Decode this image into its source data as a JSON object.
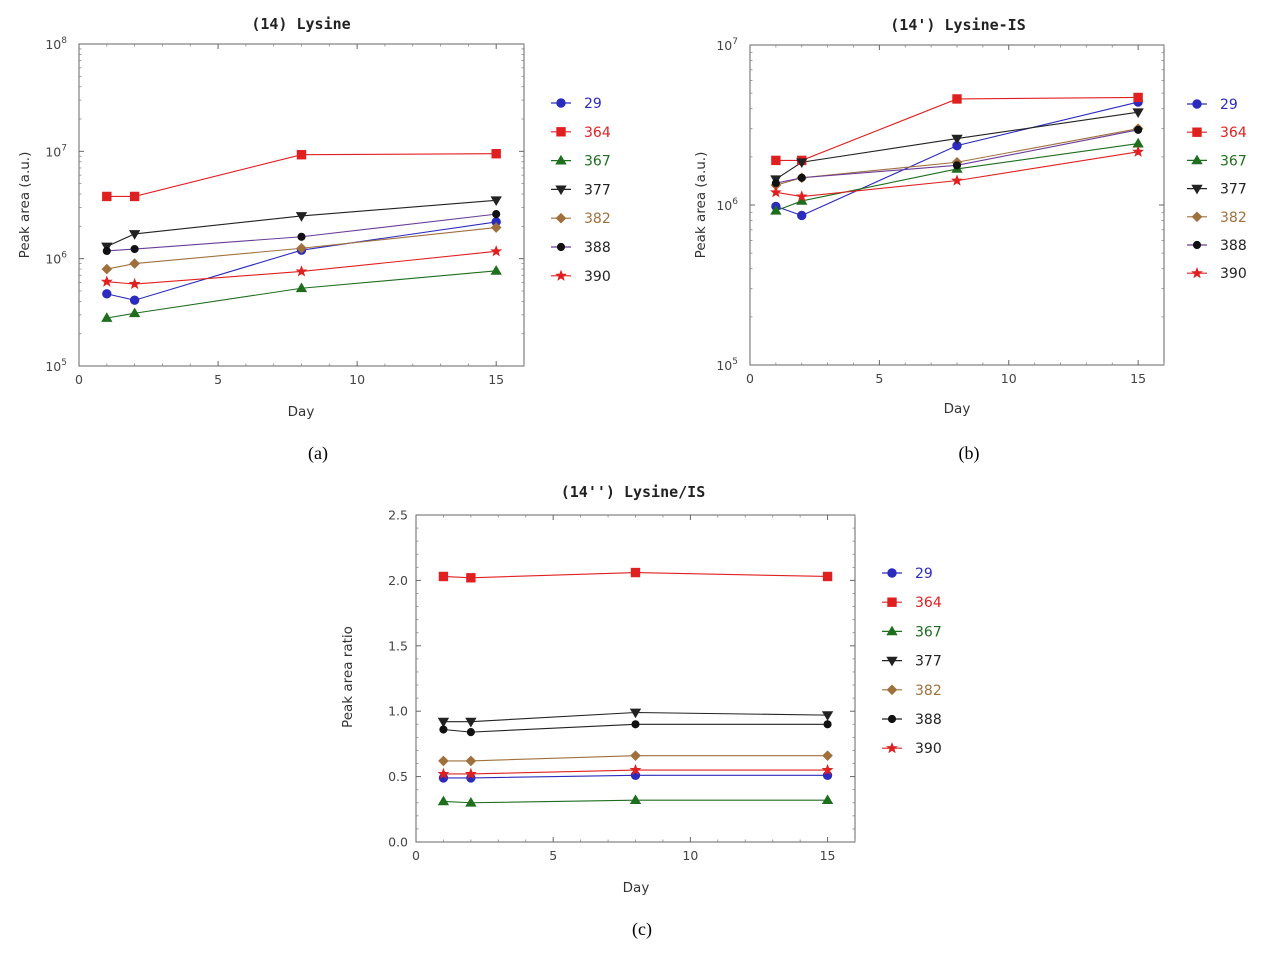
{
  "chart_data": [
    {
      "type": "line",
      "title": "(14) Lysine",
      "xlabel": "Day",
      "ylabel": "Peak area (a.u.)",
      "panel_label": "(a)",
      "yscale": "log",
      "xlim": [
        0,
        16
      ],
      "ylim": [
        100000,
        100000000
      ],
      "xticks": [
        0,
        5,
        10,
        15
      ],
      "yticks": [
        {
          "base": "10",
          "exp": "5",
          "value": 100000
        },
        {
          "base": "10",
          "exp": "6",
          "value": 1000000
        },
        {
          "base": "10",
          "exp": "7",
          "value": 10000000
        },
        {
          "base": "10",
          "exp": "8",
          "value": 100000000
        }
      ],
      "x": [
        1,
        2,
        8,
        15
      ],
      "series": [
        {
          "name": "29",
          "color": "#2b2bbf",
          "marker": "circle",
          "values": [
            470000,
            410000,
            1200000,
            2200000
          ]
        },
        {
          "name": "364",
          "color": "#e02020",
          "marker": "square",
          "values": [
            3800000,
            3800000,
            9300000,
            9500000
          ]
        },
        {
          "name": "367",
          "color": "#1e6e1e",
          "marker": "triangle-up",
          "values": [
            280000,
            310000,
            530000,
            770000
          ]
        },
        {
          "name": "377",
          "color": "#222222",
          "marker": "triangle-down",
          "values": [
            1300000,
            1700000,
            2500000,
            3500000
          ]
        },
        {
          "name": "382",
          "color": "#a0703c",
          "marker": "diamond",
          "values": [
            800000,
            900000,
            1250000,
            1950000
          ]
        },
        {
          "name": "388",
          "color": "#6a3c9a",
          "marker": "dot",
          "values": [
            1180000,
            1230000,
            1600000,
            2600000
          ]
        },
        {
          "name": "390",
          "color": "#e02020",
          "marker": "star",
          "values": [
            610000,
            580000,
            760000,
            1170000
          ]
        }
      ]
    },
    {
      "type": "line",
      "title": "(14') Lysine-IS",
      "xlabel": "Day",
      "ylabel": "Peak area (a.u.)",
      "panel_label": "(b)",
      "yscale": "log",
      "xlim": [
        0,
        16
      ],
      "ylim": [
        100000,
        10000000
      ],
      "xticks": [
        0,
        5,
        10,
        15
      ],
      "yticks": [
        {
          "base": "10",
          "exp": "5",
          "value": 100000
        },
        {
          "base": "10",
          "exp": "6",
          "value": 1000000
        },
        {
          "base": "10",
          "exp": "7",
          "value": 10000000
        }
      ],
      "x": [
        1,
        2,
        8,
        15
      ],
      "series": [
        {
          "name": "29",
          "color": "#2b2bbf",
          "marker": "circle",
          "values": [
            980000,
            860000,
            2350000,
            4400000
          ]
        },
        {
          "name": "364",
          "color": "#e02020",
          "marker": "square",
          "values": [
            1900000,
            1900000,
            4600000,
            4700000
          ]
        },
        {
          "name": "367",
          "color": "#1e6e1e",
          "marker": "triangle-up",
          "values": [
            920000,
            1060000,
            1680000,
            2420000
          ]
        },
        {
          "name": "377",
          "color": "#222222",
          "marker": "triangle-down",
          "values": [
            1450000,
            1850000,
            2600000,
            3800000
          ]
        },
        {
          "name": "382",
          "color": "#a0703c",
          "marker": "diamond",
          "values": [
            1330000,
            1480000,
            1850000,
            3000000
          ]
        },
        {
          "name": "388",
          "color": "#6a3c9a",
          "marker": "dot",
          "values": [
            1370000,
            1480000,
            1770000,
            2950000
          ]
        },
        {
          "name": "390",
          "color": "#e02020",
          "marker": "star",
          "values": [
            1200000,
            1130000,
            1420000,
            2150000
          ]
        }
      ]
    },
    {
      "type": "line",
      "title": "(14'') Lysine/IS",
      "xlabel": "Day",
      "ylabel": "Peak area ratio",
      "panel_label": "(c)",
      "yscale": "linear",
      "xlim": [
        0,
        16
      ],
      "ylim": [
        0,
        2.5
      ],
      "xticks": [
        0,
        5,
        10,
        15
      ],
      "yticks": [
        {
          "label": "0.0",
          "value": 0
        },
        {
          "label": "0.5",
          "value": 0.5
        },
        {
          "label": "1.0",
          "value": 1.0
        },
        {
          "label": "1.5",
          "value": 1.5
        },
        {
          "label": "2.0",
          "value": 2.0
        },
        {
          "label": "2.5",
          "value": 2.5
        }
      ],
      "x": [
        1,
        2,
        8,
        15
      ],
      "series": [
        {
          "name": "29",
          "color": "#2b2bbf",
          "marker": "circle",
          "values": [
            0.49,
            0.49,
            0.51,
            0.51
          ]
        },
        {
          "name": "364",
          "color": "#e02020",
          "marker": "square",
          "values": [
            2.03,
            2.02,
            2.06,
            2.03
          ]
        },
        {
          "name": "367",
          "color": "#1e6e1e",
          "marker": "triangle-up",
          "values": [
            0.31,
            0.3,
            0.32,
            0.32
          ]
        },
        {
          "name": "377",
          "color": "#222222",
          "marker": "triangle-down",
          "values": [
            0.92,
            0.92,
            0.99,
            0.97
          ]
        },
        {
          "name": "382",
          "color": "#a0703c",
          "marker": "diamond",
          "values": [
            0.62,
            0.62,
            0.66,
            0.66
          ]
        },
        {
          "name": "388",
          "color": "#222222",
          "marker": "dot",
          "values": [
            0.86,
            0.84,
            0.9,
            0.9
          ]
        },
        {
          "name": "390",
          "color": "#e02020",
          "marker": "star",
          "values": [
            0.52,
            0.52,
            0.55,
            0.55
          ]
        }
      ]
    }
  ],
  "legend_text_colors": {
    "29": "#2b2bbf",
    "364": "#e02020",
    "367": "#1e6e1e",
    "377": "#222222",
    "382": "#a0703c",
    "388": "#222222",
    "390": "#222222"
  }
}
